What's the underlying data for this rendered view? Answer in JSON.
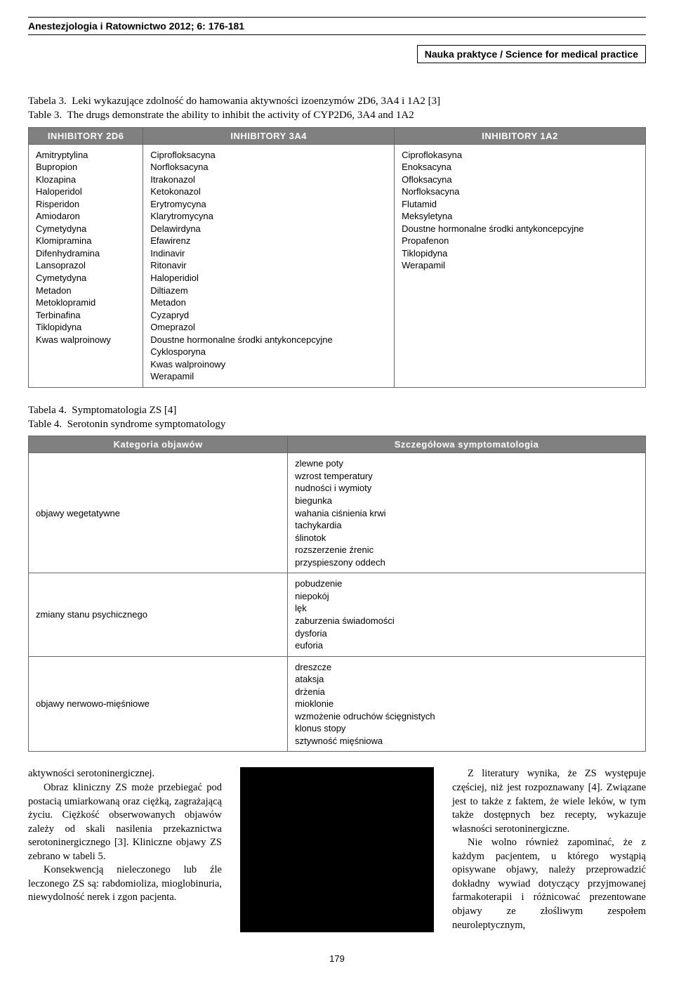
{
  "header": {
    "running": "Anestezjologia i Ratownictwo 2012; 6: 176-181",
    "science": "Nauka praktyce / Science for medical practice"
  },
  "table3": {
    "caption_pl_label": "Tabela 3.",
    "caption_pl": "Leki wykazujące zdolność do hamowania aktywności izoenzymów 2D6, 3A4 i 1A2 [3]",
    "caption_en_label": "Table 3.",
    "caption_en": "The drugs demonstrate the ability  to inhibit the activity of CYP2D6, 3A4 and 1A2",
    "headers": [
      "INHIBITORY 2D6",
      "INHIBITORY 3A4",
      "INHIBITORY 1A2"
    ],
    "col1": "Amitryptylina\nBupropion\nKlozapina\nHaloperidol\nRisperidon\nAmiodaron\nCymetydyna\nKlomipramina\nDifenhydramina\nLansoprazol\nCymetydyna\nMetadon\nMetoklopramid\nTerbinafina\nTiklopidyna\nKwas walproinowy",
    "col2": "Ciprofloksacyna\nNorfloksacyna\nItrakonazol\nKetokonazol\nErytromycyna\nKlarytromycyna\nDelawirdyna\nEfawirenz\nIndinavir\nRitonavir\nHaloperidiol\nDiltiazem\nMetadon\nCyzapryd\nOmeprazol\nDoustne hormonalne środki antykoncepcyjne\nCyklosporyna\nKwas walproinowy\nWerapamil",
    "col3": "Ciproflokasyna\nEnoksacyna\nOfloksacyna\nNorfloksacyna\nFlutamid\nMeksyletyna\nDoustne hormonalne środki antykoncepcyjne\nPropafenon\nTiklopidyna\nWerapamil"
  },
  "table4": {
    "caption_pl_label": "Tabela 4.",
    "caption_pl": "Symptomatologia ZS [4]",
    "caption_en_label": "Table 4.",
    "caption_en": "Serotonin syndrome symptomatology",
    "headers": [
      "Kategoria objawów",
      "Szczegółowa symptomatologia"
    ],
    "rows": [
      {
        "cat": "objawy wegetatywne",
        "sym": "zlewne poty\nwzrost temperatury\nnudności i wymioty\nbiegunka\nwahania ciśnienia krwi\ntachykardia\nślinotok\nrozszerzenie źrenic\nprzyspieszony oddech"
      },
      {
        "cat": "zmiany stanu psychicznego",
        "sym": "pobudzenie\nniepokój\nlęk\nzaburzenia świadomości\ndysforia\neuforia"
      },
      {
        "cat": "objawy nerwowo-mięśniowe",
        "sym": "dreszcze\nataksja\ndrżenia\nmioklonie\nwzmożenie odruchów ścięgnistych\nklonus stopy\nsztywność mięśniowa"
      }
    ]
  },
  "body": {
    "left": {
      "p1": "aktywności serotoninergicznej.",
      "p2": "Obraz kliniczny ZS może przebiegać pod postacią umiarkowaną oraz ciężką, zagrażającą życiu. Ciężkość obserwowanych objawów zależy od skali nasilenia przekaznictwa serotoninergicznego [3]. Kliniczne objawy ZS zebrano w tabeli 5.",
      "p3": "Konsekwencją nieleczonego lub źle leczonego ZS są: rabdomioliza, mioglobinuria, niewydolność nerek i zgon pacjenta."
    },
    "right": {
      "p1": "Z literatury wynika, że ZS występuje częściej, niż jest rozpoznawany [4]. Związane jest to także z faktem, że wiele leków, w tym także dostępnych bez recepty, wykazuje własności serotoninergiczne.",
      "p2": "Nie wolno również zapominać, że z każdym pacjentem, u którego wystąpią opisywane objawy, należy przeprowadzić dokładny wywiad dotyczący przyjmowanej farmakoterapii i różnicować prezentowane objawy ze złośliwym zespołem neuroleptycznym,"
    }
  },
  "page_number": "179",
  "colors": {
    "header_bg": "#808080",
    "header_fg": "#ffffff",
    "border": "#666666"
  }
}
